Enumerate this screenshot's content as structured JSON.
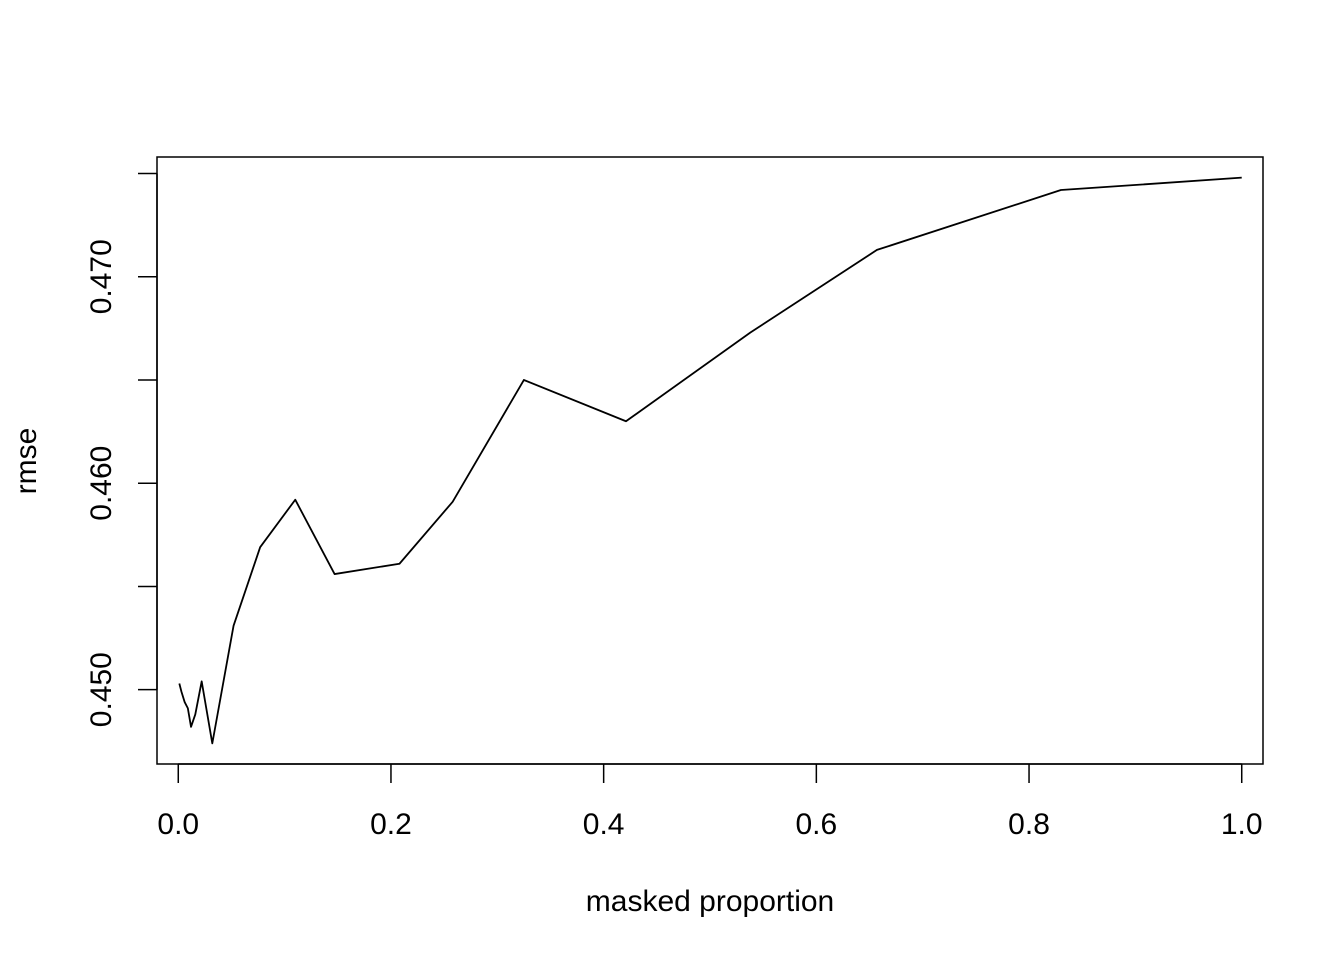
{
  "chart_data": {
    "type": "line",
    "title": "",
    "xlabel": "masked proportion",
    "ylabel": "rmse",
    "xlim": [
      -0.02,
      1.02
    ],
    "ylim": [
      0.4464,
      0.4758
    ],
    "x_ticks": [
      0.0,
      0.2,
      0.4,
      0.6,
      0.8,
      1.0
    ],
    "x_tick_labels": [
      "0.0",
      "0.2",
      "0.4",
      "0.6",
      "0.8",
      "1.0"
    ],
    "y_ticks": [
      0.45,
      0.455,
      0.46,
      0.465,
      0.47,
      0.475
    ],
    "y_tick_labels": [
      "0.450",
      "",
      "0.460",
      "",
      "0.470",
      ""
    ],
    "grid": false,
    "line_color": "#000000",
    "series": [
      {
        "x": [
          0.001,
          0.003,
          0.006,
          0.009,
          0.012,
          0.016,
          0.022,
          0.032,
          0.052,
          0.077,
          0.11,
          0.147,
          0.208,
          0.258,
          0.325,
          0.421,
          0.538,
          0.657,
          0.83,
          1.0
        ],
        "y": [
          0.4503,
          0.4499,
          0.4494,
          0.4491,
          0.4482,
          0.4488,
          0.4504,
          0.4474,
          0.4531,
          0.4569,
          0.4592,
          0.4556,
          0.4561,
          0.4591,
          0.465,
          0.463,
          0.4673,
          0.4713,
          0.4742,
          0.4748
        ]
      }
    ]
  }
}
